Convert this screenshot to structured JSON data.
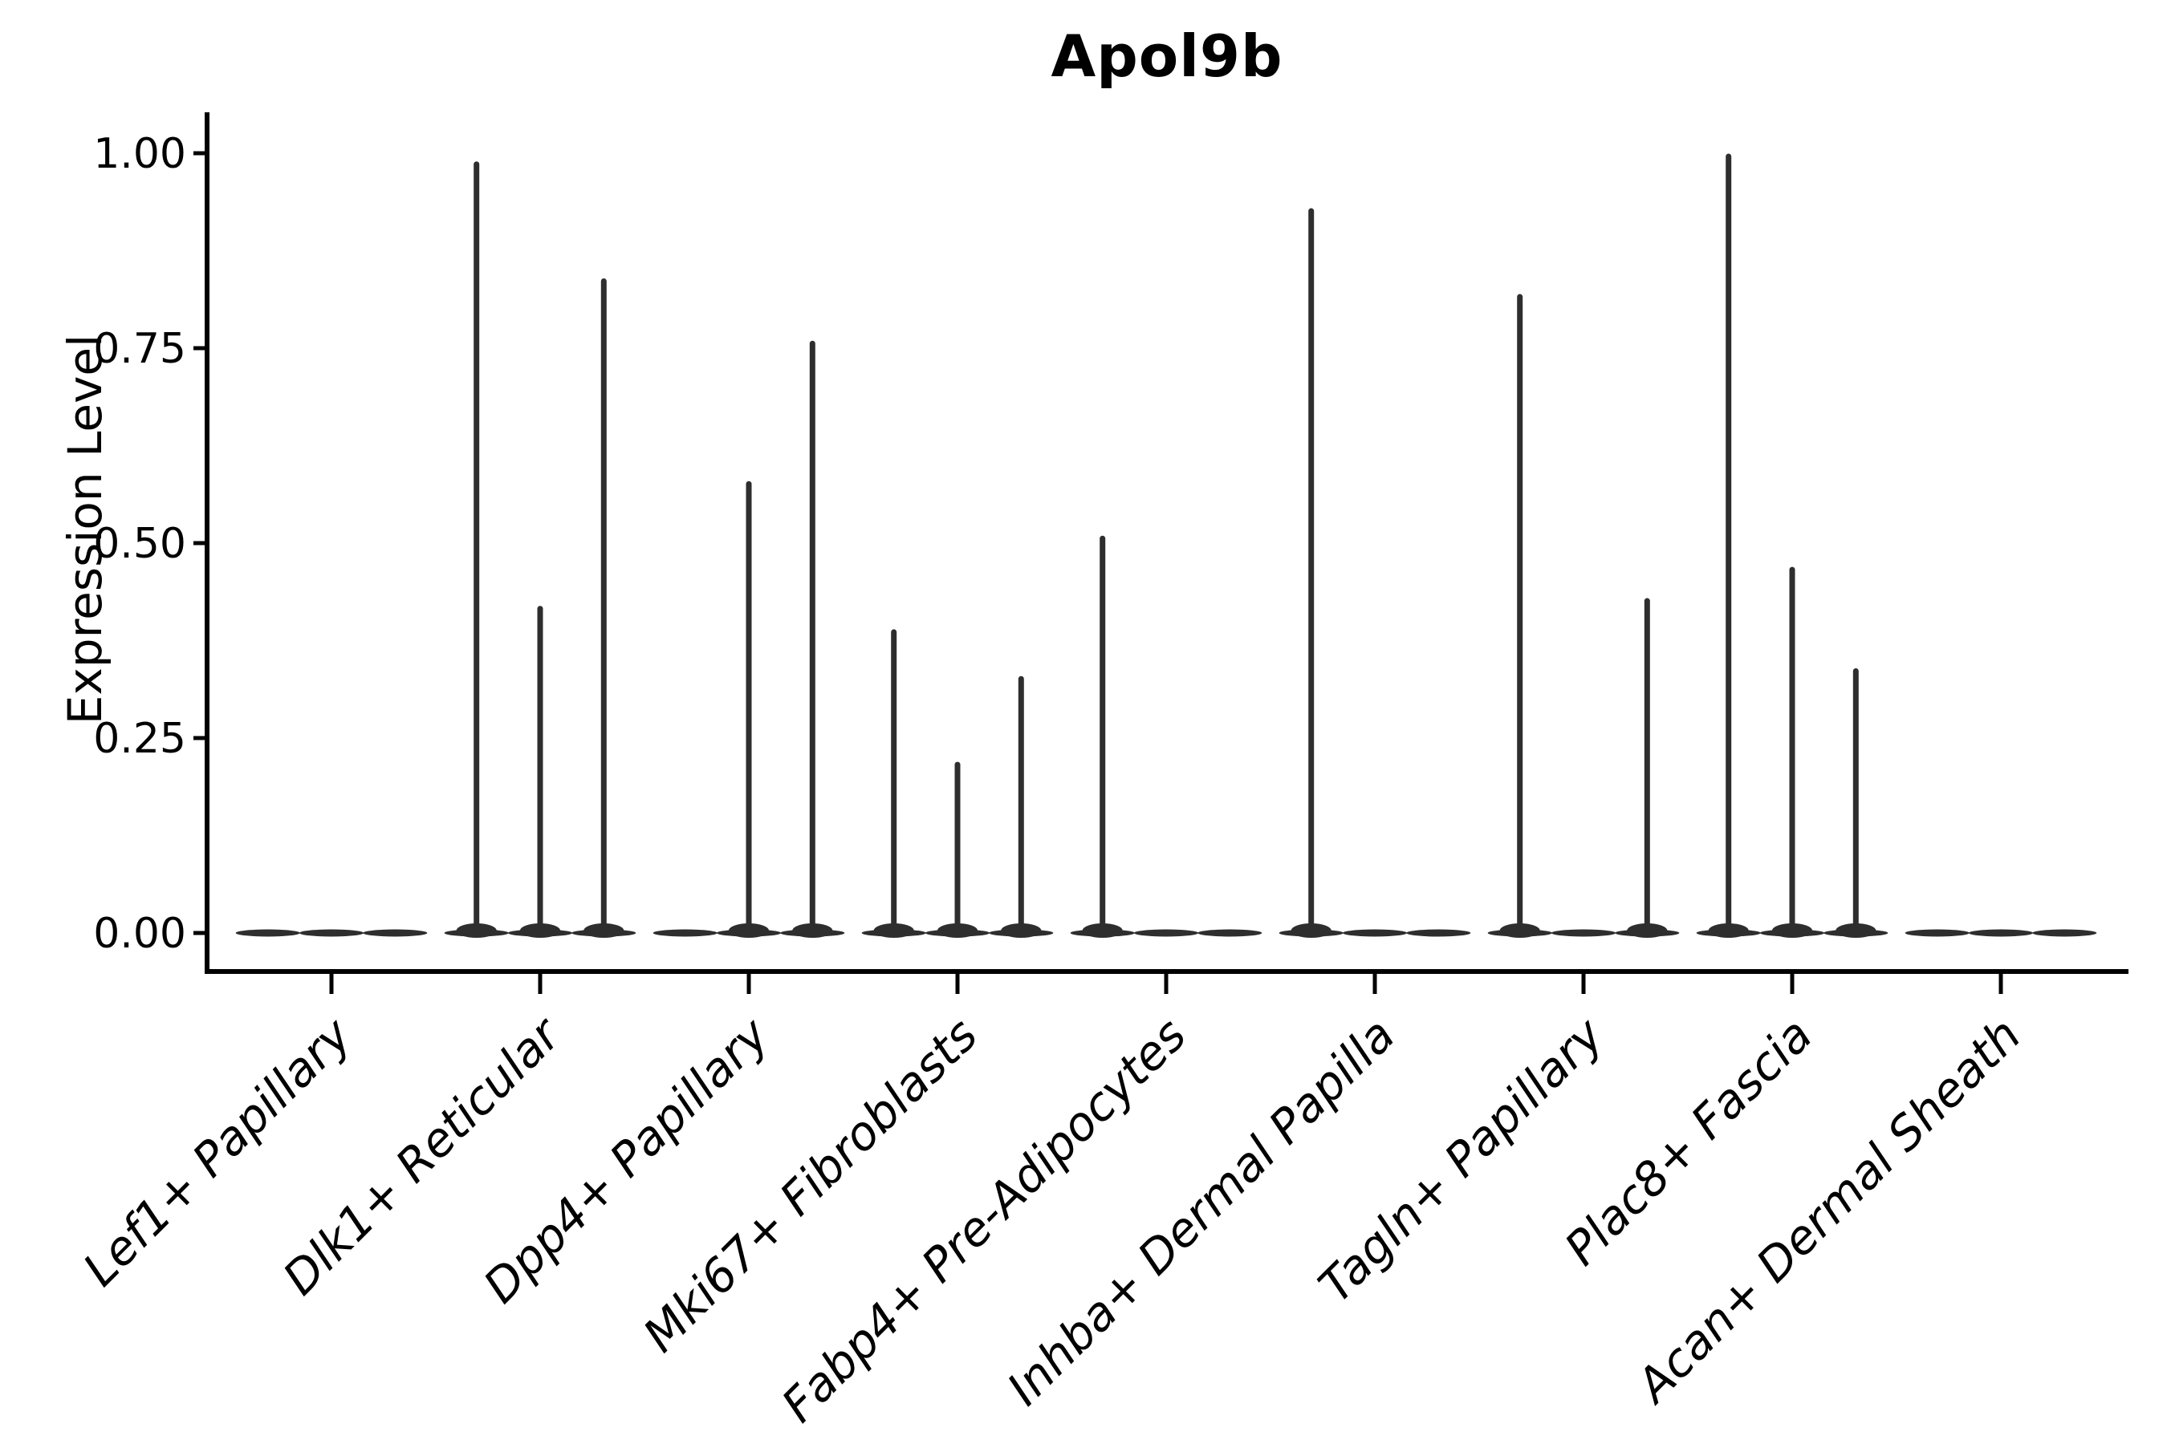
{
  "chart_data": {
    "type": "violin",
    "title": "Apol9b",
    "ylabel": "Expression Level",
    "xlabel": "",
    "ylim": [
      0,
      1.05
    ],
    "yticks": [
      "0.00",
      "0.25",
      "0.50",
      "0.75",
      "1.00"
    ],
    "ytick_values": [
      0.0,
      0.25,
      0.5,
      0.75,
      1.0
    ],
    "grid": false,
    "legend": "none",
    "violins_per_category": 3,
    "violin_color": "#2e2e2e",
    "axis_color": "#000000",
    "categories": [
      "Lef1+ Papillary",
      "Dlk1+ Reticular",
      "Dpp4+ Papillary",
      "Mki67+ Fibroblasts",
      "Fabp4+ Pre-Adipocytes",
      "Inhba+ Dermal Papilla",
      "Tagln+ Papillary",
      "Plac8+ Fascia",
      "Acan+ Dermal Sheath"
    ],
    "series": [
      {
        "category": "Lef1+ Papillary",
        "spike_maxima": [
          0,
          0,
          0
        ]
      },
      {
        "category": "Dlk1+ Reticular",
        "spike_maxima": [
          0.99,
          0.42,
          0.84
        ]
      },
      {
        "category": "Dpp4+ Papillary",
        "spike_maxima": [
          0,
          0.58,
          0.76
        ]
      },
      {
        "category": "Mki67+ Fibroblasts",
        "spike_maxima": [
          0.39,
          0.22,
          0.33
        ]
      },
      {
        "category": "Fabp4+ Pre-Adipocytes",
        "spike_maxima": [
          0.51,
          0,
          0
        ]
      },
      {
        "category": "Inhba+ Dermal Papilla",
        "spike_maxima": [
          0.93,
          0,
          0
        ]
      },
      {
        "category": "Tagln+ Papillary",
        "spike_maxima": [
          0.82,
          0,
          0.43
        ]
      },
      {
        "category": "Plac8+ Fascia",
        "spike_maxima": [
          1.0,
          0.47,
          0.34
        ]
      },
      {
        "category": "Acan+ Dermal Sheath",
        "spike_maxima": [
          0,
          0,
          0
        ]
      }
    ]
  }
}
